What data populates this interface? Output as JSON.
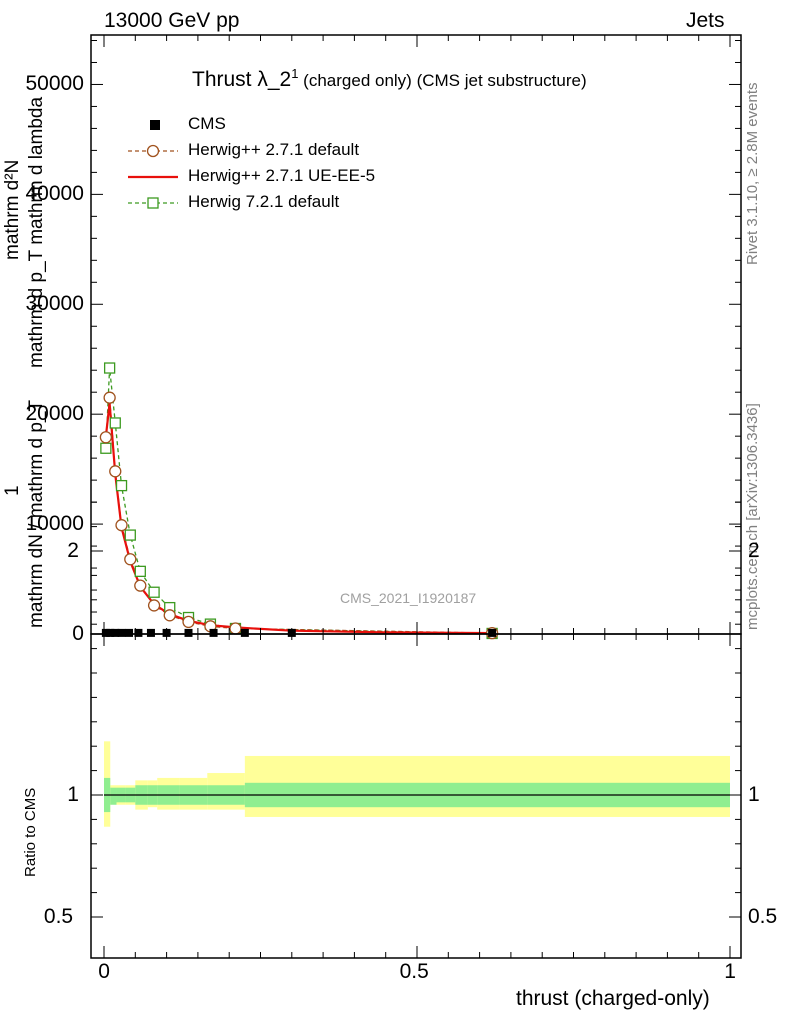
{
  "header": {
    "left": "13000 GeV pp",
    "right": "Jets"
  },
  "plot_title": {
    "main": "Thrust λ_2",
    "sup": "1",
    "sub": " (charged only) (CMS jet substructure)"
  },
  "side_labels": {
    "rivet": "Rivet 3.1.10, ≥ 2.8M events",
    "mcplots": "mcplots.cern.ch [arXiv:1306.3436]"
  },
  "watermark": "CMS_2021_I1920187",
  "y_axis": {
    "numerator_1": "mathrm d²N",
    "numerator_2": "mathrm d p_T mathrm d lambda",
    "one": "1",
    "denominator": "mathrm dN / mathrm d p_T"
  },
  "ratio_label": "Ratio to CMS",
  "x_label": "thrust (charged-only)",
  "legend": [
    {
      "name": "CMS",
      "color": "#000000",
      "style": "square"
    },
    {
      "name": "Herwig++ 2.7.1 default",
      "color": "#a0521e",
      "style": "circle-dashed"
    },
    {
      "name": "Herwig++ 2.7.1 UE-EE-5",
      "color": "#e8100c",
      "style": "solid"
    },
    {
      "name": "Herwig 7.2.1 default",
      "color": "#3c9a20",
      "style": "square-dashed"
    }
  ],
  "chart_data": {
    "type": "line",
    "title": "Thrust λ_2^1 (charged only) (CMS jet substructure)",
    "xlabel": "thrust (charged-only)",
    "xlim": [
      0,
      1
    ],
    "ylim": [
      0,
      54500
    ],
    "y_ticks": [
      0,
      10000,
      20000,
      30000,
      40000,
      50000
    ],
    "x_ticks": [
      0,
      0.5,
      1
    ],
    "ratio_ylim": [
      0.38,
      2.28
    ],
    "ratio_ticks": [
      0.5,
      1,
      2
    ],
    "series": [
      {
        "name": "CMS",
        "x": [
          0.003,
          0.01,
          0.018,
          0.028,
          0.04,
          0.055,
          0.075,
          0.1,
          0.135,
          0.175,
          0.225,
          0.3,
          0.62
        ],
        "y": [
          100,
          100,
          100,
          100,
          100,
          100,
          100,
          100,
          100,
          100,
          100,
          100,
          100
        ]
      },
      {
        "name": "Herwig++ 2.7.1 default",
        "x": [
          0.003,
          0.009,
          0.018,
          0.028,
          0.042,
          0.058,
          0.08,
          0.105,
          0.135,
          0.17,
          0.21,
          0.62
        ],
        "y": [
          17900,
          21500,
          14800,
          9900,
          6800,
          4400,
          2600,
          1700,
          1100,
          700,
          500,
          80
        ]
      },
      {
        "name": "Herwig++ 2.7.1 UE-EE-5",
        "x": [
          0.003,
          0.009,
          0.018,
          0.028,
          0.042,
          0.058,
          0.08,
          0.105,
          0.135,
          0.17,
          0.21,
          0.3,
          0.45,
          0.62
        ],
        "y": [
          18000,
          21000,
          14500,
          9700,
          6600,
          4300,
          2700,
          1800,
          1200,
          800,
          600,
          300,
          150,
          80
        ]
      },
      {
        "name": "Herwig 7.2.1 default",
        "x": [
          0.003,
          0.009,
          0.018,
          0.028,
          0.042,
          0.058,
          0.08,
          0.105,
          0.135,
          0.17,
          0.21,
          0.62
        ],
        "y": [
          16900,
          24200,
          19200,
          13500,
          9000,
          5700,
          3800,
          2400,
          1500,
          900,
          500,
          50
        ]
      }
    ],
    "ratio_band": {
      "x_edges": [
        0,
        0.01,
        0.02,
        0.035,
        0.05,
        0.07,
        0.085,
        0.12,
        0.165,
        0.225,
        1.0
      ],
      "green_lo": [
        0.93,
        0.96,
        0.97,
        0.97,
        0.96,
        0.96,
        0.96,
        0.96,
        0.96,
        0.95
      ],
      "green_hi": [
        1.07,
        1.03,
        1.03,
        1.03,
        1.04,
        1.04,
        1.04,
        1.04,
        1.04,
        1.05
      ],
      "yellow_lo": [
        0.87,
        0.97,
        0.96,
        0.96,
        0.94,
        0.95,
        0.94,
        0.94,
        0.94,
        0.91
      ],
      "yellow_hi": [
        1.22,
        1.04,
        1.04,
        1.04,
        1.06,
        1.06,
        1.07,
        1.07,
        1.09,
        1.16
      ]
    }
  }
}
